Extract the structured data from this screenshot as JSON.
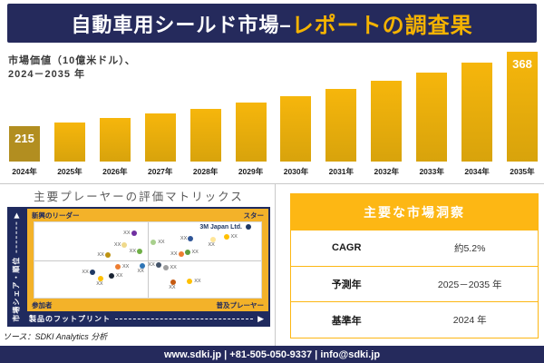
{
  "banner": {
    "title_white": "自動車用シールド市場–",
    "title_gold": "レポートの調査果"
  },
  "chart_subtitle": {
    "line1": "市場価値（10億米ドル）、",
    "line2": "2024－2035 年"
  },
  "chart_data": [
    {
      "type": "bar",
      "title": "市場価値（10億米ドル）、2024－2035年",
      "categories": [
        "2024年",
        "2025年",
        "2026年",
        "2027年",
        "2028年",
        "2029年",
        "2030年",
        "2031年",
        "2032年",
        "2033年",
        "2034年",
        "2035年"
      ],
      "values": [
        215,
        223,
        231,
        241,
        251,
        264,
        277,
        291,
        309,
        325,
        346,
        368
      ],
      "bar_labels": [
        "215",
        "",
        "",
        "",
        "",
        "",
        "",
        "",
        "",
        "",
        "",
        "368"
      ],
      "xlabel": "",
      "ylabel": "市場価値（10億米ドル）",
      "grid": false,
      "legend": "none"
    },
    {
      "type": "scatter",
      "title": "主要プレーヤーの評価マトリックス",
      "xlabel": "製品のフットプリント",
      "ylabel": "市場シェア・順位",
      "axis_units": "percent of plot area, y measured from top",
      "quadrant_labels": {
        "top_left": "新興のリーダー",
        "top_right": "スター",
        "bottom_left": "参加者",
        "bottom_right": "普及プレーヤー"
      },
      "points": [
        {
          "x": 43.8,
          "y": 14.2,
          "color": "#7030A0",
          "label": "XX",
          "label_pos": "left"
        },
        {
          "x": 39.7,
          "y": 30.0,
          "color": "#EFD98B",
          "label": "XX",
          "label_pos": "left"
        },
        {
          "x": 46.4,
          "y": 38.0,
          "color": "#6FAF46",
          "label": "XX",
          "label_pos": "left"
        },
        {
          "x": 32.3,
          "y": 43.4,
          "color": "#BD9210",
          "label": "XX",
          "label_pos": "left"
        },
        {
          "x": 94.4,
          "y": 6.2,
          "color": "#1F3864",
          "label": "3M Japan Ltd.",
          "label_pos": "company"
        },
        {
          "x": 68.9,
          "y": 21.7,
          "color": "#2F5597",
          "label": "XX",
          "label_pos": "left"
        },
        {
          "x": 84.6,
          "y": 19.2,
          "color": "#FFC000",
          "label": "XX",
          "label_pos": "right"
        },
        {
          "x": 78.6,
          "y": 23.0,
          "color": "#FFE699",
          "label": "XX",
          "label_pos": "below"
        },
        {
          "x": 52.5,
          "y": 26.7,
          "color": "#A8D08D",
          "label": "XX",
          "label_pos": "right"
        },
        {
          "x": 67.4,
          "y": 40.0,
          "color": "#5F9E3E",
          "label": "XX",
          "label_pos": "right"
        },
        {
          "x": 64.6,
          "y": 42.1,
          "color": "#ED7D31",
          "label": "XX",
          "label_pos": "left"
        },
        {
          "x": 36.8,
          "y": 59.2,
          "color": "#ED7D31",
          "label": "XX",
          "label_pos": "right"
        },
        {
          "x": 47.4,
          "y": 58.3,
          "color": "#2E75B6",
          "label": "XX",
          "label_pos": "below"
        },
        {
          "x": 25.5,
          "y": 66.7,
          "color": "#1F3864",
          "label": "XX",
          "label_pos": "left"
        },
        {
          "x": 34.0,
          "y": 71.2,
          "color": "#1A2433",
          "label": "XX",
          "label_pos": "right"
        },
        {
          "x": 29.3,
          "y": 74.2,
          "color": "#FFC000",
          "label": "XX",
          "label_pos": "below"
        },
        {
          "x": 54.7,
          "y": 56.7,
          "color": "#44546A",
          "label": "XX",
          "label_pos": "left"
        },
        {
          "x": 57.8,
          "y": 60.8,
          "color": "#9E9E9E",
          "label": "XX",
          "label_pos": "right"
        },
        {
          "x": 61.3,
          "y": 79.2,
          "color": "#C55A11",
          "label": "XX",
          "label_pos": "below"
        },
        {
          "x": 68.5,
          "y": 78.0,
          "color": "#FFC000",
          "label": "XX",
          "label_pos": "right"
        }
      ]
    }
  ],
  "matrix": {
    "title": "主要プレーヤーの評価マトリックス",
    "y_axis_label": "市場シェア・順位",
    "x_axis_label": "製品のフットプリント",
    "quadrant_top_left": "新興のリーダー",
    "quadrant_top_right": "スター",
    "quadrant_bottom_left": "参加者",
    "quadrant_bottom_right": "普及プレーヤー"
  },
  "insights": {
    "title": "主要な市場洞察",
    "rows": [
      {
        "label": "CAGR",
        "value": "約5.2%"
      },
      {
        "label": "予測年",
        "value": "2025－2035 年"
      },
      {
        "label": "基準年",
        "value": "2024 年"
      }
    ]
  },
  "source": "ソース：SDKI Analytics 分析",
  "footer": "www.sdki.jp | +81-505-050-9337 | info@sdki.jp",
  "colors": {
    "navy": "#252A5C",
    "matrix_navy": "#1F2A5E",
    "gold_title": "#F5B301",
    "gold_band": "#F3B229",
    "gold_table": "#FDB714",
    "bar_gold_top": "#F6B60C",
    "bar_gold_bottom": "#D8A30C",
    "bar_first": "#B28E20"
  }
}
